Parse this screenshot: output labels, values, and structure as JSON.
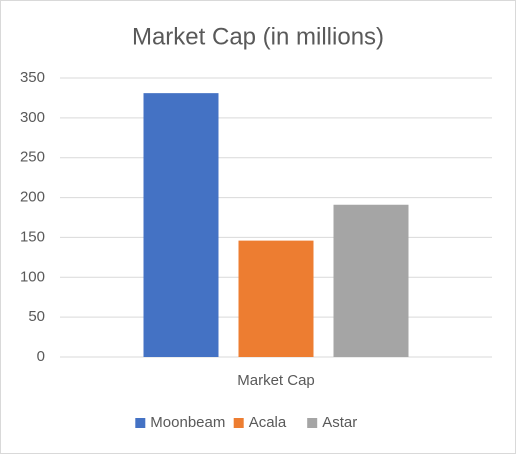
{
  "chart_data": {
    "type": "bar",
    "title": "Market Cap (in millions)",
    "categories": [
      "Market Cap"
    ],
    "series": [
      {
        "name": "Moonbeam",
        "color": "#4472c4",
        "values": [
          331
        ]
      },
      {
        "name": "Acala",
        "color": "#ed7d31",
        "values": [
          146
        ]
      },
      {
        "name": "Astar",
        "color": "#a5a5a5",
        "values": [
          191
        ]
      }
    ],
    "ylim": [
      0,
      350
    ],
    "yticks": [
      0,
      50,
      100,
      150,
      200,
      250,
      300,
      350
    ],
    "grid": true,
    "legend": "bottom"
  }
}
